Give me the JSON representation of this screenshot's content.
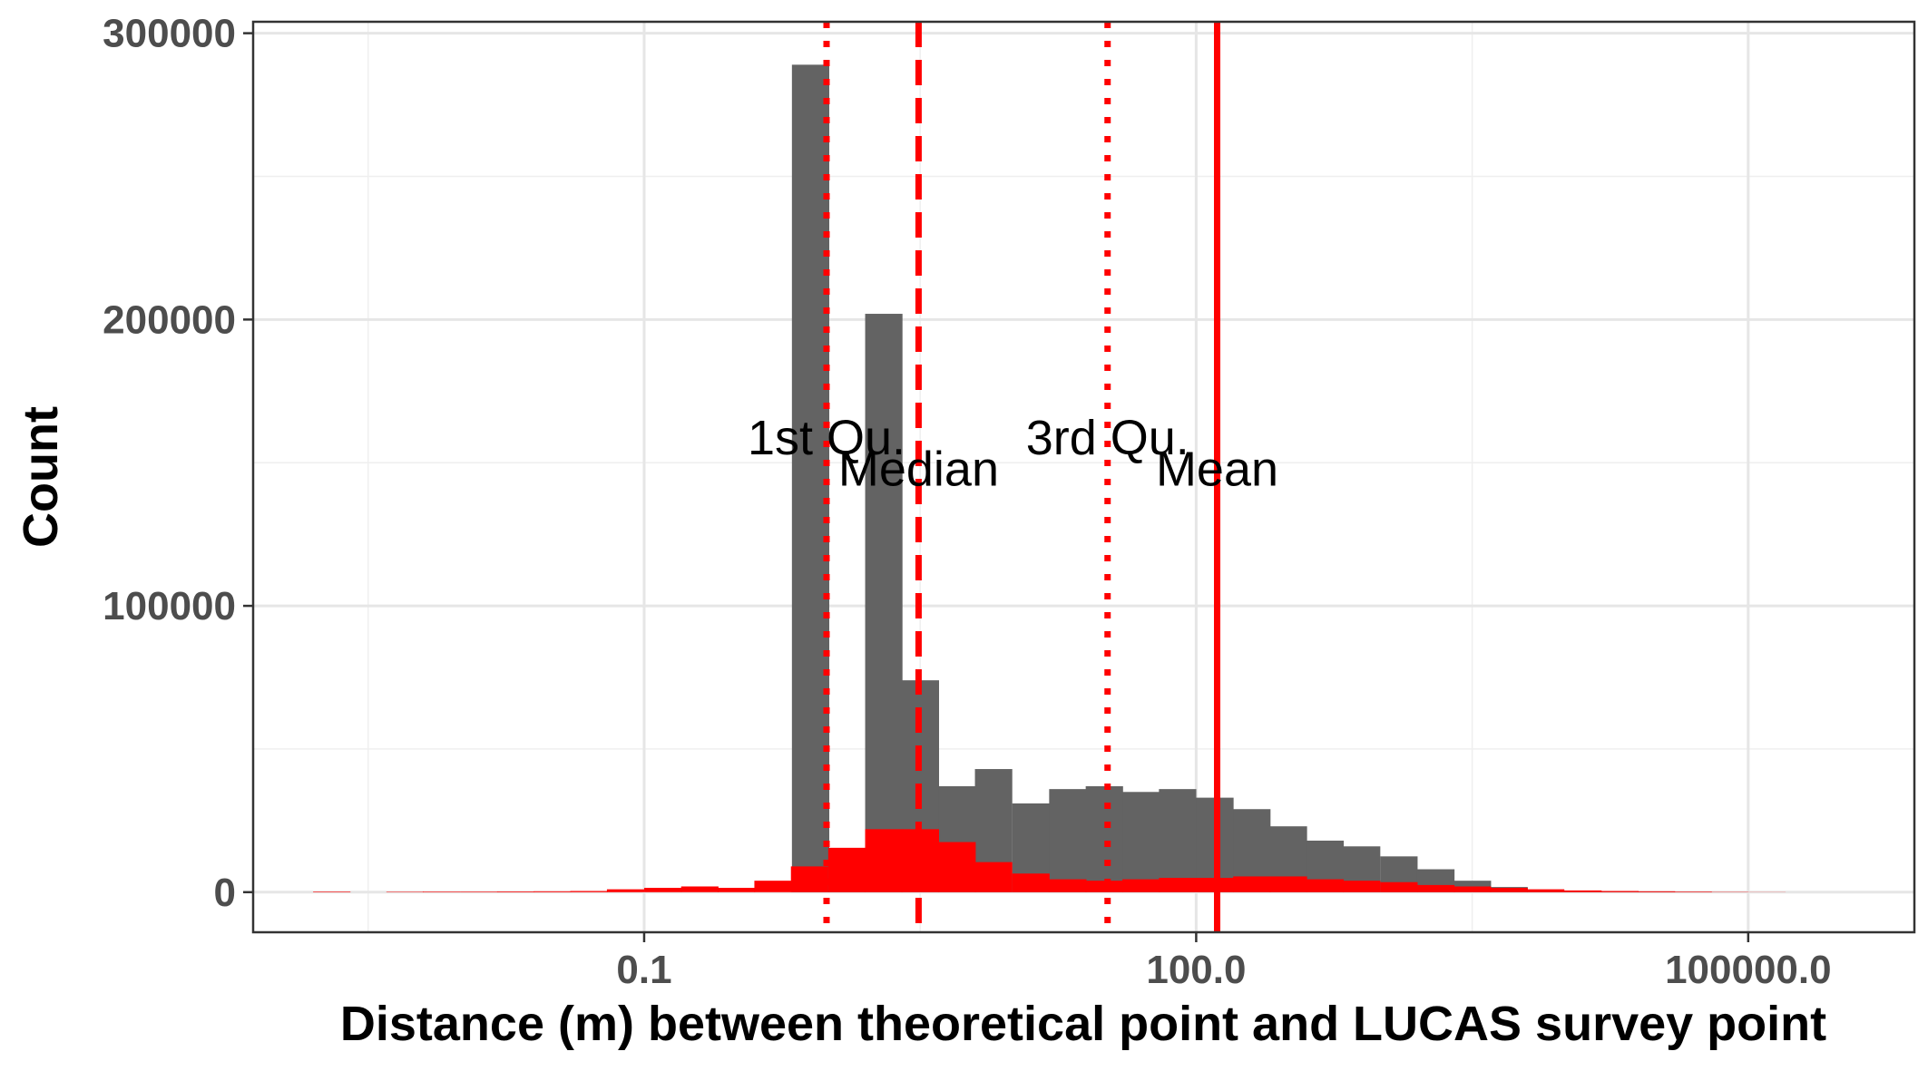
{
  "chart_data": {
    "type": "histogram",
    "title": "",
    "xlabel": "Distance (m) between theoretical point and LUCAS survey point",
    "ylabel": "Count",
    "x_scale": "log10",
    "xlim": [
      0.00075,
      800000
    ],
    "ylim": [
      -14000,
      304000
    ],
    "x_ticks": [
      {
        "value": 0.1,
        "label": "0.1"
      },
      {
        "value": 100,
        "label": "100.0"
      },
      {
        "value": 100000,
        "label": "100000.0"
      }
    ],
    "y_ticks": [
      {
        "value": 0,
        "label": "0"
      },
      {
        "value": 100000,
        "label": "100000"
      },
      {
        "value": 200000,
        "label": "200000"
      },
      {
        "value": 300000,
        "label": "300000"
      }
    ],
    "grid": true,
    "bin_width_log10": 0.2,
    "series": [
      {
        "color": "#636363",
        "bins": [
          {
            "x": 0.8,
            "count": 289000
          },
          {
            "x": 1.26,
            "count": 2000
          },
          {
            "x": 2.0,
            "count": 202000
          },
          {
            "x": 3.16,
            "count": 74000
          },
          {
            "x": 5.0,
            "count": 37000
          },
          {
            "x": 7.9,
            "count": 43000
          },
          {
            "x": 12.6,
            "count": 31000
          },
          {
            "x": 20,
            "count": 36000
          },
          {
            "x": 31.6,
            "count": 37000
          },
          {
            "x": 50,
            "count": 35000
          },
          {
            "x": 79,
            "count": 36000
          },
          {
            "x": 126,
            "count": 33000
          },
          {
            "x": 200,
            "count": 29000
          },
          {
            "x": 316,
            "count": 23000
          },
          {
            "x": 500,
            "count": 18000
          },
          {
            "x": 790,
            "count": 16000
          },
          {
            "x": 1260,
            "count": 12500
          },
          {
            "x": 2000,
            "count": 8000
          },
          {
            "x": 3160,
            "count": 4000
          },
          {
            "x": 5000,
            "count": 1800
          },
          {
            "x": 7900,
            "count": 900
          },
          {
            "x": 12600,
            "count": 400
          },
          {
            "x": 20000,
            "count": 200
          },
          {
            "x": 31600,
            "count": 100
          },
          {
            "x": 50000,
            "count": 50
          },
          {
            "x": 79000,
            "count": 20
          }
        ]
      },
      {
        "color": "#ff0000",
        "bins": [
          {
            "x": 0.002,
            "count": 200
          },
          {
            "x": 0.005,
            "count": 150
          },
          {
            "x": 0.0079,
            "count": 200
          },
          {
            "x": 0.0126,
            "count": 200
          },
          {
            "x": 0.02,
            "count": 250
          },
          {
            "x": 0.0316,
            "count": 300
          },
          {
            "x": 0.05,
            "count": 400
          },
          {
            "x": 0.079,
            "count": 1000
          },
          {
            "x": 0.126,
            "count": 1500
          },
          {
            "x": 0.2,
            "count": 2000
          },
          {
            "x": 0.316,
            "count": 1500
          },
          {
            "x": 0.5,
            "count": 4000
          },
          {
            "x": 0.79,
            "count": 9000
          },
          {
            "x": 1.26,
            "count": 15500
          },
          {
            "x": 2.0,
            "count": 22000
          },
          {
            "x": 3.16,
            "count": 22000
          },
          {
            "x": 5.0,
            "count": 17500
          },
          {
            "x": 7.9,
            "count": 10500
          },
          {
            "x": 12.6,
            "count": 6500
          },
          {
            "x": 20,
            "count": 4500
          },
          {
            "x": 31.6,
            "count": 4000
          },
          {
            "x": 50,
            "count": 4500
          },
          {
            "x": 79,
            "count": 5000
          },
          {
            "x": 126,
            "count": 5000
          },
          {
            "x": 200,
            "count": 5500
          },
          {
            "x": 316,
            "count": 5500
          },
          {
            "x": 500,
            "count": 4500
          },
          {
            "x": 790,
            "count": 4000
          },
          {
            "x": 1260,
            "count": 3500
          },
          {
            "x": 2000,
            "count": 2500
          },
          {
            "x": 3160,
            "count": 2000
          },
          {
            "x": 5000,
            "count": 1500
          },
          {
            "x": 7900,
            "count": 1000
          },
          {
            "x": 12600,
            "count": 600
          },
          {
            "x": 20000,
            "count": 400
          },
          {
            "x": 31600,
            "count": 300
          },
          {
            "x": 50000,
            "count": 200
          },
          {
            "x": 79000,
            "count": 100
          },
          {
            "x": 126000,
            "count": 50
          }
        ]
      }
    ],
    "reference_lines": [
      {
        "label": "1st Qu.",
        "x": 0.98,
        "style": "dotted",
        "color": "#ff0000",
        "label_y": 159000
      },
      {
        "label": "Median",
        "x": 3.1,
        "style": "dashed",
        "color": "#ff0000",
        "label_y": 148000
      },
      {
        "label": "3rd Qu.",
        "x": 33,
        "style": "dotted",
        "color": "#ff0000",
        "label_y": 159000
      },
      {
        "label": "Mean",
        "x": 130,
        "style": "solid",
        "color": "#ff0000",
        "label_y": 148000
      }
    ]
  }
}
